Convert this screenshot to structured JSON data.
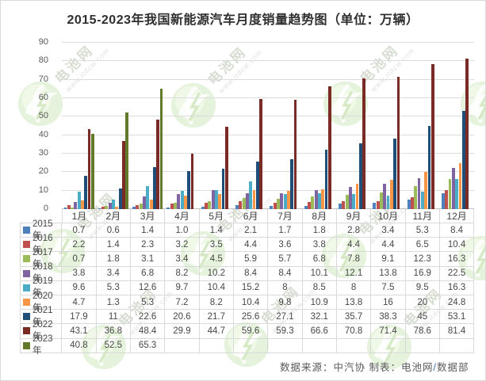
{
  "title": "2015-2023年我国新能源汽车月度销量趋势图（单位：万辆）",
  "watermark": {
    "brand": "电池网",
    "url": "www.itdcw.com"
  },
  "footer": {
    "source": "数据来源：中汽协",
    "made_by": "  制表：电池网",
    "slash": "/",
    "dept": "数据部"
  },
  "chart_data": {
    "type": "bar",
    "title": "2015-2023年我国新能源汽车月度销量趋势图（单位：万辆）",
    "unit": "万辆",
    "grid": true,
    "legend_position": "data-table-left",
    "ylim": [
      0,
      90
    ],
    "ytick_step": 10,
    "yticks": [
      "0",
      "10",
      "20",
      "30",
      "40",
      "50",
      "60",
      "70",
      "80",
      "90"
    ],
    "categories": [
      "1月",
      "2月",
      "3月",
      "4月",
      "5月",
      "6月",
      "7月",
      "8月",
      "9月",
      "10月",
      "11月",
      "12月"
    ],
    "series": [
      {
        "name": "2015年",
        "color": "#4F81BD",
        "values": [
          "0.7",
          "0.6",
          "1.4",
          "1.0",
          "1.4",
          "2.1",
          "1.7",
          "1.8",
          "2.8",
          "3.4",
          "5.3",
          "8.4"
        ]
      },
      {
        "name": "2016年",
        "color": "#C0504D",
        "values": [
          "2.2",
          "1.4",
          "2.3",
          "3.2",
          "3.5",
          "4.4",
          "3.6",
          "3.8",
          "4.4",
          "4.4",
          "6.5",
          "10.4"
        ]
      },
      {
        "name": "2017年",
        "color": "#9BBB59",
        "values": [
          "0.7",
          "1.8",
          "3.1",
          "3.4",
          "4.5",
          "5.9",
          "5.7",
          "6.8",
          "7.8",
          "9.1",
          "12.3",
          "16.3"
        ]
      },
      {
        "name": "2018年",
        "color": "#8064A2",
        "values": [
          "3.8",
          "3.4",
          "6.8",
          "8.2",
          "10.2",
          "8.4",
          "8.4",
          "10.1",
          "12.1",
          "13.8",
          "16.9",
          "22.5"
        ]
      },
      {
        "name": "2019年",
        "color": "#4BACC6",
        "values": [
          "9.6",
          "5.3",
          "12.6",
          "9.7",
          "10.4",
          "15.2",
          "8",
          "8.5",
          "8",
          "7.5",
          "9.5",
          "16.3"
        ]
      },
      {
        "name": "2020年",
        "color": "#F79646",
        "values": [
          "4.7",
          "1.3",
          "5.3",
          "7.2",
          "8.2",
          "10.4",
          "9.8",
          "10.9",
          "13.8",
          "16",
          "20",
          "24.8"
        ]
      },
      {
        "name": "2021年",
        "color": "#1F4E79",
        "values": [
          "17.9",
          "11",
          "22.6",
          "20.6",
          "21.7",
          "25.6",
          "27.1",
          "32.1",
          "35.7",
          "38.3",
          "45",
          "53.1"
        ]
      },
      {
        "name": "2022年",
        "color": "#7B2B26",
        "values": [
          "43.1",
          "36.8",
          "48.4",
          "29.9",
          "44.7",
          "59.6",
          "59.3",
          "66.6",
          "70.8",
          "71.4",
          "78.6",
          "81.4"
        ]
      },
      {
        "name": "2023年",
        "color": "#637A2B",
        "values": [
          "40.8",
          "52.5",
          "65.3",
          "",
          "",
          "",
          "",
          "",
          "",
          "",
          "",
          ""
        ]
      }
    ]
  }
}
